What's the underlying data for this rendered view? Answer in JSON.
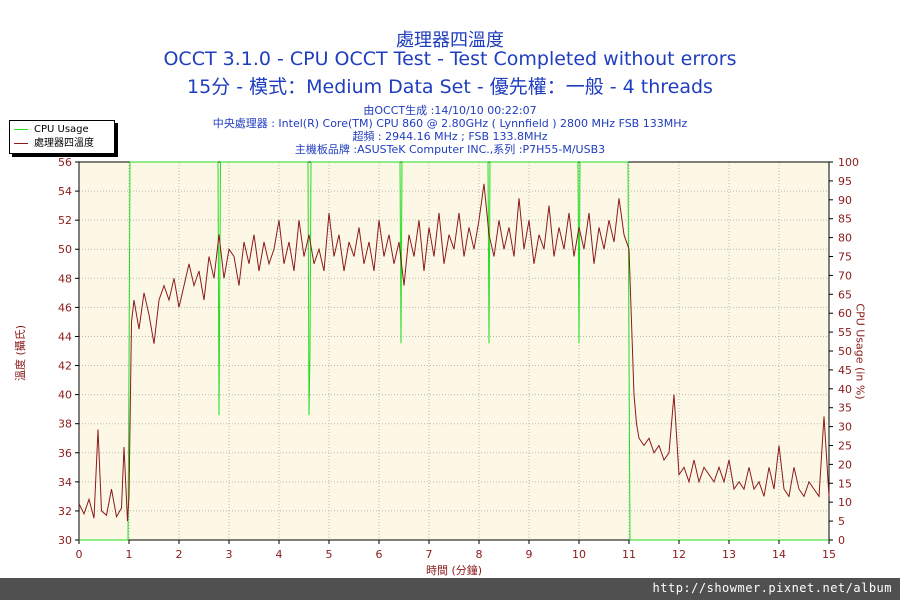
{
  "header": {
    "title": "處理器四溫度",
    "subtitle1": "OCCT 3.1.0 - CPU OCCT Test - Test Completed without errors",
    "subtitle2": "15分 - 模式：Medium Data Set - 優先權：一般 - 4 threads",
    "info": [
      "由OCCT生成 :14/10/10 00:22:07",
      "中央處理器 : Intel(R) Core(TM) CPU 860 @ 2.80GHz ( Lynnfield ) 2800 MHz FSB 133MHz",
      "超頻 : 2944.16 MHz ; FSB 133.8MHz",
      "主機板品牌 :ASUSTeK Computer INC.,系列 :P7H55-M/USB3"
    ]
  },
  "footer": {
    "url": "http://showmer.pixnet.net/album"
  },
  "colors": {
    "temp": "#8b1a1a",
    "usage": "#22dd22",
    "plot_bg": "#fdf8e6",
    "axis_text": "#8b1a1a"
  },
  "chart_data": {
    "type": "line",
    "xlabel": "時間 (分鐘)",
    "ylabel_left": "溫度 (攝氏)",
    "ylabel_right": "CPU Usage (in %)",
    "xlim": [
      0,
      15
    ],
    "ylim_left": [
      30,
      56
    ],
    "ylim_right": [
      0,
      100
    ],
    "x_ticks": [
      0,
      1,
      2,
      3,
      4,
      5,
      6,
      7,
      8,
      9,
      10,
      11,
      12,
      13,
      14,
      15
    ],
    "y_left_ticks": [
      30,
      32,
      34,
      36,
      38,
      40,
      42,
      44,
      46,
      48,
      50,
      52,
      54,
      56
    ],
    "y_right_ticks": [
      0,
      5,
      10,
      15,
      20,
      25,
      30,
      35,
      40,
      45,
      50,
      55,
      60,
      65,
      70,
      75,
      80,
      85,
      90,
      95,
      100
    ],
    "grid": "dotted",
    "legend": {
      "position": "top-left"
    },
    "series": [
      {
        "name": "CPU Usage",
        "axis": "right",
        "points": [
          [
            0,
            0
          ],
          [
            0.98,
            0
          ],
          [
            1.0,
            45
          ],
          [
            1.02,
            100
          ],
          [
            2.78,
            100
          ],
          [
            2.8,
            33
          ],
          [
            2.83,
            100
          ],
          [
            4.58,
            100
          ],
          [
            4.6,
            33
          ],
          [
            4.62,
            50
          ],
          [
            4.64,
            100
          ],
          [
            6.42,
            100
          ],
          [
            6.44,
            52
          ],
          [
            6.46,
            100
          ],
          [
            8.18,
            100
          ],
          [
            8.2,
            52
          ],
          [
            8.22,
            100
          ],
          [
            9.98,
            100
          ],
          [
            10.0,
            52
          ],
          [
            10.02,
            100
          ],
          [
            10.98,
            100
          ],
          [
            11.02,
            0
          ],
          [
            15,
            0
          ]
        ]
      },
      {
        "name": "處理器四溫度",
        "axis": "left",
        "points": [
          [
            0,
            32.5
          ],
          [
            0.1,
            31.8
          ],
          [
            0.2,
            32.8
          ],
          [
            0.3,
            31.5
          ],
          [
            0.38,
            37.6
          ],
          [
            0.45,
            32.0
          ],
          [
            0.55,
            31.7
          ],
          [
            0.65,
            33.5
          ],
          [
            0.75,
            31.6
          ],
          [
            0.85,
            32.2
          ],
          [
            0.9,
            36.4
          ],
          [
            0.97,
            31.3
          ],
          [
            1.0,
            33.0
          ],
          [
            1.05,
            45.0
          ],
          [
            1.1,
            46.5
          ],
          [
            1.2,
            44.5
          ],
          [
            1.3,
            47.0
          ],
          [
            1.4,
            45.5
          ],
          [
            1.5,
            43.5
          ],
          [
            1.6,
            46.5
          ],
          [
            1.7,
            47.5
          ],
          [
            1.8,
            46.5
          ],
          [
            1.9,
            48.0
          ],
          [
            2.0,
            46.0
          ],
          [
            2.1,
            47.5
          ],
          [
            2.2,
            49.0
          ],
          [
            2.3,
            47.5
          ],
          [
            2.4,
            48.5
          ],
          [
            2.5,
            46.5
          ],
          [
            2.6,
            49.5
          ],
          [
            2.7,
            48.0
          ],
          [
            2.8,
            51.0
          ],
          [
            2.9,
            48.0
          ],
          [
            3.0,
            50.0
          ],
          [
            3.1,
            49.5
          ],
          [
            3.2,
            47.5
          ],
          [
            3.3,
            50.5
          ],
          [
            3.4,
            49.0
          ],
          [
            3.5,
            51.0
          ],
          [
            3.6,
            48.5
          ],
          [
            3.7,
            50.5
          ],
          [
            3.8,
            49.0
          ],
          [
            3.9,
            50.0
          ],
          [
            4.0,
            52.0
          ],
          [
            4.1,
            49.0
          ],
          [
            4.2,
            50.5
          ],
          [
            4.3,
            48.5
          ],
          [
            4.4,
            52.0
          ],
          [
            4.5,
            49.5
          ],
          [
            4.6,
            51.0
          ],
          [
            4.7,
            49.0
          ],
          [
            4.8,
            50.0
          ],
          [
            4.9,
            48.5
          ],
          [
            5.0,
            52.5
          ],
          [
            5.1,
            49.5
          ],
          [
            5.2,
            51.0
          ],
          [
            5.3,
            48.5
          ],
          [
            5.4,
            50.5
          ],
          [
            5.5,
            49.5
          ],
          [
            5.6,
            51.5
          ],
          [
            5.7,
            49.0
          ],
          [
            5.8,
            50.5
          ],
          [
            5.9,
            48.5
          ],
          [
            6.0,
            52.0
          ],
          [
            6.1,
            49.5
          ],
          [
            6.2,
            51.0
          ],
          [
            6.3,
            49.0
          ],
          [
            6.4,
            50.5
          ],
          [
            6.5,
            47.5
          ],
          [
            6.6,
            51.0
          ],
          [
            6.7,
            49.5
          ],
          [
            6.8,
            52.0
          ],
          [
            6.9,
            48.5
          ],
          [
            7.0,
            51.5
          ],
          [
            7.1,
            49.5
          ],
          [
            7.2,
            52.5
          ],
          [
            7.3,
            49.0
          ],
          [
            7.4,
            51.0
          ],
          [
            7.5,
            50.0
          ],
          [
            7.6,
            52.5
          ],
          [
            7.7,
            49.5
          ],
          [
            7.8,
            51.5
          ],
          [
            7.9,
            50.0
          ],
          [
            8.0,
            52.0
          ],
          [
            8.1,
            54.5
          ],
          [
            8.2,
            51.0
          ],
          [
            8.3,
            49.5
          ],
          [
            8.4,
            52.0
          ],
          [
            8.5,
            50.0
          ],
          [
            8.6,
            51.5
          ],
          [
            8.7,
            49.5
          ],
          [
            8.8,
            53.5
          ],
          [
            8.9,
            50.0
          ],
          [
            9.0,
            52.0
          ],
          [
            9.1,
            49.0
          ],
          [
            9.2,
            51.0
          ],
          [
            9.3,
            50.0
          ],
          [
            9.4,
            53.0
          ],
          [
            9.5,
            49.5
          ],
          [
            9.6,
            51.5
          ],
          [
            9.7,
            50.0
          ],
          [
            9.8,
            52.5
          ],
          [
            9.9,
            49.5
          ],
          [
            10.0,
            51.5
          ],
          [
            10.1,
            50.0
          ],
          [
            10.2,
            52.5
          ],
          [
            10.3,
            49.0
          ],
          [
            10.4,
            51.5
          ],
          [
            10.5,
            50.0
          ],
          [
            10.6,
            52.0
          ],
          [
            10.7,
            50.5
          ],
          [
            10.8,
            53.5
          ],
          [
            10.9,
            51.0
          ],
          [
            11.0,
            50.0
          ],
          [
            11.05,
            45.0
          ],
          [
            11.1,
            40.0
          ],
          [
            11.15,
            38.0
          ],
          [
            11.2,
            37.0
          ],
          [
            11.3,
            36.5
          ],
          [
            11.4,
            37.0
          ],
          [
            11.5,
            36.0
          ],
          [
            11.6,
            36.5
          ],
          [
            11.7,
            35.5
          ],
          [
            11.8,
            36.0
          ],
          [
            11.9,
            40.0
          ],
          [
            12.0,
            34.5
          ],
          [
            12.1,
            35.0
          ],
          [
            12.2,
            34.0
          ],
          [
            12.3,
            35.5
          ],
          [
            12.4,
            34.0
          ],
          [
            12.5,
            35.0
          ],
          [
            12.6,
            34.5
          ],
          [
            12.7,
            34.0
          ],
          [
            12.8,
            35.0
          ],
          [
            12.9,
            34.0
          ],
          [
            13.0,
            35.5
          ],
          [
            13.1,
            33.5
          ],
          [
            13.2,
            34.0
          ],
          [
            13.3,
            33.5
          ],
          [
            13.4,
            35.0
          ],
          [
            13.5,
            33.5
          ],
          [
            13.6,
            34.0
          ],
          [
            13.7,
            33.0
          ],
          [
            13.8,
            35.0
          ],
          [
            13.9,
            33.5
          ],
          [
            14.0,
            36.5
          ],
          [
            14.1,
            33.5
          ],
          [
            14.2,
            33.0
          ],
          [
            14.3,
            35.0
          ],
          [
            14.4,
            33.5
          ],
          [
            14.5,
            33.0
          ],
          [
            14.6,
            34.0
          ],
          [
            14.7,
            33.5
          ],
          [
            14.8,
            33.0
          ],
          [
            14.9,
            38.5
          ],
          [
            15.0,
            33.0
          ]
        ]
      }
    ]
  }
}
